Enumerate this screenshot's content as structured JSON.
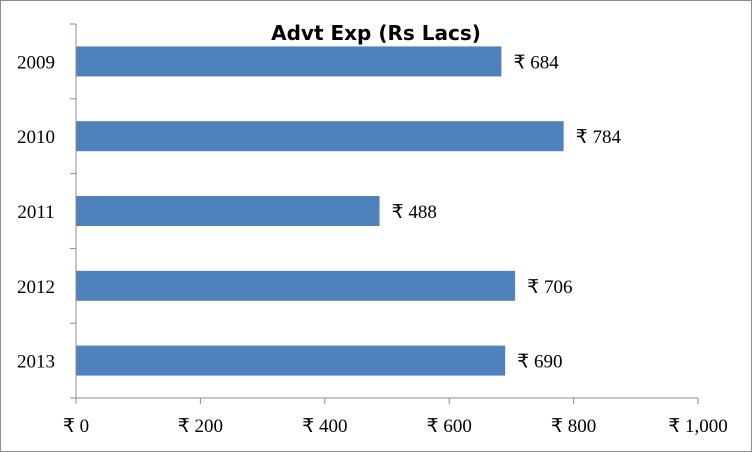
{
  "chart_data": {
    "type": "bar",
    "orientation": "horizontal",
    "title": "Advt Exp (Rs Lacs)",
    "categories": [
      "2009",
      "2010",
      "2011",
      "2012",
      "2013"
    ],
    "values": [
      684,
      784,
      488,
      706,
      690
    ],
    "data_labels": [
      "₹ 684",
      "₹ 784",
      "₹ 488",
      "₹ 706",
      "₹ 690"
    ],
    "xlim": [
      0,
      1000
    ],
    "x_ticks": [
      0,
      200,
      400,
      600,
      800,
      1000
    ],
    "x_tick_labels": [
      "₹ 0",
      "₹ 200",
      "₹ 400",
      "₹ 600",
      "₹ 800",
      "₹ 1,000"
    ],
    "grid": false,
    "legend": "none",
    "bar_color": "#4f81bd"
  }
}
